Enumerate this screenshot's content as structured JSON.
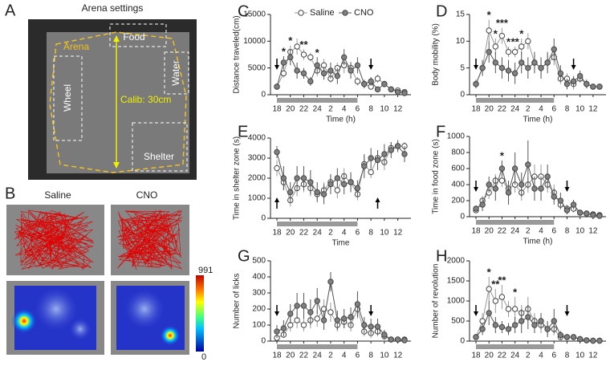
{
  "panels": {
    "a": {
      "letter": "A",
      "title": "Arena settings",
      "food": "Food",
      "arena": "Arena",
      "water": "Water",
      "wheel": "Wheel",
      "calib": "Calib: 30cm",
      "shelter": "Shelter"
    },
    "b": {
      "letter": "B",
      "saline": "Saline",
      "cno": "CNO",
      "colorbar_max": 991,
      "colorbar_min": 0
    }
  },
  "chart_data": [
    {
      "type": "line",
      "letter": "C",
      "ylabel": "Distance traveled(cm)",
      "xlabel": "Time (h)",
      "legend": true,
      "categories": [
        "18",
        null,
        "20",
        null,
        "22",
        null,
        "24",
        null,
        "2",
        null,
        "4",
        null,
        "6",
        null,
        "8",
        null,
        "10",
        null,
        "12",
        null
      ],
      "ylim": [
        0,
        15000
      ],
      "yticks": [
        0,
        5000,
        10000,
        15000
      ],
      "stars": [
        null,
        "*",
        "*",
        null,
        "**",
        null,
        "*",
        null,
        null,
        null,
        null,
        null,
        null,
        null,
        null,
        null,
        null,
        null,
        null,
        null
      ],
      "series": [
        {
          "name": "Saline",
          "color": "#ffffff",
          "line": "#999999",
          "values": [
            1500,
            4000,
            8000,
            9000,
            7500,
            7000,
            4500,
            5500,
            3000,
            5000,
            5500,
            5000,
            2500,
            2000,
            1500,
            3000,
            2000,
            1000,
            800,
            500
          ],
          "errors": [
            500,
            800,
            1200,
            1500,
            1000,
            800,
            1000,
            1200,
            800,
            1000,
            1500,
            1200,
            800,
            600,
            500,
            800,
            500,
            300,
            200,
            200
          ]
        },
        {
          "name": "CNO",
          "color": "#808080",
          "line": "#555555",
          "values": [
            1500,
            6000,
            7000,
            4500,
            4000,
            2500,
            5500,
            4000,
            4500,
            3500,
            7000,
            4500,
            5500,
            2000,
            2500,
            1000,
            2000,
            1000,
            500,
            300
          ],
          "errors": [
            600,
            1200,
            1500,
            1500,
            1000,
            800,
            1500,
            1200,
            1500,
            1500,
            1500,
            1500,
            1500,
            800,
            800,
            500,
            600,
            400,
            200,
            200
          ]
        }
      ]
    },
    {
      "type": "line",
      "letter": "D",
      "ylabel": "Body mobility (%)",
      "xlabel": "Time (h)",
      "categories": [
        "18",
        null,
        "20",
        null,
        "22",
        null,
        "24",
        null,
        "2",
        null,
        "4",
        null,
        "6",
        null,
        "8",
        null,
        "10",
        null,
        "12",
        null
      ],
      "ylim": [
        0,
        15
      ],
      "yticks": [
        0,
        5,
        10,
        15
      ],
      "stars": [
        null,
        null,
        "*",
        "*",
        "***",
        "*",
        "**",
        "*",
        null,
        null,
        null,
        null,
        null,
        null,
        null,
        null,
        null,
        null,
        null,
        null
      ],
      "series": [
        {
          "color": "#ffffff",
          "line": "#999999",
          "values": [
            2,
            5,
            12,
            9,
            11,
            8,
            8,
            9,
            10,
            6,
            5,
            6,
            7,
            3,
            3,
            2,
            3,
            2,
            1.5,
            1.5
          ],
          "errors": [
            0.8,
            1,
            2,
            1.5,
            1.5,
            1,
            1,
            1.5,
            1.5,
            1.5,
            1.5,
            1.5,
            1.5,
            1,
            1,
            1,
            0.8,
            0.8,
            0.5,
            0.5
          ]
        },
        {
          "color": "#808080",
          "line": "#555555",
          "values": [
            2,
            5,
            8,
            6,
            5,
            4.5,
            4,
            6,
            5,
            6,
            5,
            6,
            8.5,
            4,
            2,
            2.5,
            3.5,
            2,
            1.5,
            1.5
          ],
          "errors": [
            0.8,
            1.5,
            2,
            2,
            2,
            2,
            2,
            2,
            2,
            2,
            2,
            2,
            2,
            1.5,
            1,
            1,
            1,
            0.8,
            0.5,
            0.5
          ]
        }
      ]
    },
    {
      "type": "line",
      "letter": "E",
      "ylabel": "Time in shelter zone (s)",
      "xlabel": "Time",
      "categories": [
        "18",
        null,
        "20",
        null,
        "22",
        null,
        "24",
        null,
        "2",
        null,
        "4",
        null,
        "6",
        null,
        "8",
        null,
        "10",
        null,
        "12",
        null
      ],
      "ylim": [
        0,
        4000
      ],
      "yticks": [
        0,
        1000,
        2000,
        3000,
        4000
      ],
      "series": [
        {
          "color": "#ffffff",
          "line": "#999999",
          "values": [
            2500,
            1800,
            900,
            1500,
            1700,
            1500,
            1200,
            1400,
            1800,
            1400,
            2100,
            1800,
            1200,
            2700,
            2300,
            3000,
            2800,
            3500,
            3600,
            3600
          ],
          "errors": [
            400,
            400,
            300,
            400,
            400,
            400,
            300,
            400,
            400,
            400,
            400,
            400,
            300,
            400,
            300,
            400,
            400,
            300,
            200,
            200
          ]
        },
        {
          "color": "#808080",
          "line": "#555555",
          "values": [
            3300,
            2000,
            1300,
            2000,
            2000,
            1800,
            1300,
            1200,
            1700,
            2000,
            1700,
            1800,
            1500,
            2600,
            3000,
            2900,
            3200,
            3400,
            3600,
            3200
          ],
          "errors": [
            300,
            600,
            500,
            600,
            600,
            600,
            500,
            500,
            500,
            500,
            500,
            500,
            400,
            600,
            500,
            500,
            500,
            400,
            300,
            400
          ]
        }
      ]
    },
    {
      "type": "line",
      "letter": "F",
      "ylabel": "Time in food zone (s)",
      "xlabel": "Time (h)",
      "categories": [
        "18",
        null,
        "20",
        null,
        "22",
        null,
        "24",
        null,
        "2",
        null,
        "4",
        null,
        "6",
        null,
        "8",
        null,
        "10",
        null,
        "12",
        null
      ],
      "ylim": [
        0,
        1000
      ],
      "yticks": [
        0,
        200,
        400,
        600,
        800,
        1000
      ],
      "stars": [
        null,
        null,
        null,
        null,
        "*",
        null,
        null,
        null,
        null,
        null,
        null,
        null,
        null,
        null,
        null,
        null,
        null,
        null,
        null,
        null
      ],
      "series": [
        {
          "color": "#ffffff",
          "line": "#999999",
          "values": [
            80,
            200,
            300,
            450,
            450,
            350,
            400,
            300,
            400,
            500,
            500,
            400,
            300,
            150,
            100,
            100,
            50,
            40,
            30,
            20
          ],
          "errors": [
            30,
            60,
            80,
            80,
            80,
            100,
            100,
            100,
            100,
            150,
            150,
            100,
            100,
            60,
            50,
            50,
            30,
            20,
            20,
            10
          ]
        },
        {
          "color": "#808080",
          "line": "#555555",
          "values": [
            100,
            150,
            400,
            350,
            600,
            300,
            600,
            400,
            650,
            350,
            350,
            500,
            250,
            200,
            80,
            150,
            50,
            40,
            20,
            10
          ],
          "errors": [
            40,
            80,
            100,
            150,
            100,
            150,
            200,
            150,
            300,
            150,
            150,
            150,
            100,
            100,
            50,
            60,
            30,
            20,
            20,
            10
          ]
        }
      ]
    },
    {
      "type": "line",
      "letter": "G",
      "ylabel": "Number of licks",
      "categories": [
        "18",
        null,
        "20",
        null,
        "22",
        null,
        "24",
        null,
        "2",
        null,
        "4",
        null,
        "6",
        null,
        "8",
        null,
        "10",
        null,
        "12",
        null
      ],
      "ylim": [
        0,
        500
      ],
      "yticks": [
        0,
        100,
        200,
        300,
        400,
        500
      ],
      "series": [
        {
          "color": "#ffffff",
          "line": "#999999",
          "values": [
            20,
            40,
            100,
            130,
            100,
            130,
            140,
            200,
            180,
            100,
            120,
            100,
            200,
            60,
            50,
            60,
            30,
            10,
            10,
            10
          ],
          "errors": [
            20,
            20,
            40,
            50,
            40,
            50,
            50,
            60,
            60,
            40,
            40,
            40,
            60,
            30,
            30,
            30,
            20,
            10,
            10,
            10
          ]
        },
        {
          "color": "#808080",
          "line": "#555555",
          "values": [
            60,
            80,
            170,
            220,
            220,
            180,
            250,
            130,
            370,
            130,
            140,
            150,
            230,
            100,
            90,
            90,
            40,
            10,
            10,
            5
          ],
          "errors": [
            40,
            50,
            60,
            80,
            80,
            80,
            80,
            60,
            60,
            60,
            60,
            60,
            80,
            50,
            50,
            50,
            30,
            10,
            10,
            5
          ]
        }
      ]
    },
    {
      "type": "line",
      "letter": "H",
      "ylabel": "Number of revolution",
      "categories": [
        "18",
        null,
        "20",
        null,
        "22",
        null,
        "24",
        null,
        "2",
        null,
        "4",
        null,
        "6",
        null,
        "8",
        null,
        "10",
        null,
        "12",
        null
      ],
      "ylim": [
        0,
        2000
      ],
      "yticks": [
        0,
        500,
        1000,
        1500,
        2000
      ],
      "stars": [
        null,
        null,
        "*",
        "**",
        "**",
        null,
        "*",
        null,
        null,
        null,
        null,
        null,
        null,
        null,
        null,
        null,
        null,
        null,
        null,
        null
      ],
      "series": [
        {
          "color": "#ffffff",
          "line": "#999999",
          "values": [
            100,
            500,
            1300,
            1000,
            1100,
            800,
            800,
            700,
            800,
            500,
            400,
            300,
            300,
            100,
            100,
            100,
            50,
            20,
            10,
            10
          ],
          "errors": [
            50,
            200,
            300,
            300,
            300,
            200,
            300,
            200,
            300,
            200,
            200,
            150,
            150,
            50,
            50,
            50,
            30,
            20,
            10,
            10
          ]
        },
        {
          "color": "#808080",
          "line": "#555555",
          "values": [
            100,
            300,
            700,
            400,
            350,
            300,
            400,
            500,
            600,
            400,
            500,
            300,
            500,
            150,
            100,
            100,
            50,
            20,
            10,
            10
          ],
          "errors": [
            50,
            150,
            300,
            200,
            150,
            150,
            200,
            300,
            300,
            200,
            200,
            200,
            300,
            100,
            60,
            60,
            30,
            20,
            10,
            10
          ]
        }
      ]
    }
  ]
}
